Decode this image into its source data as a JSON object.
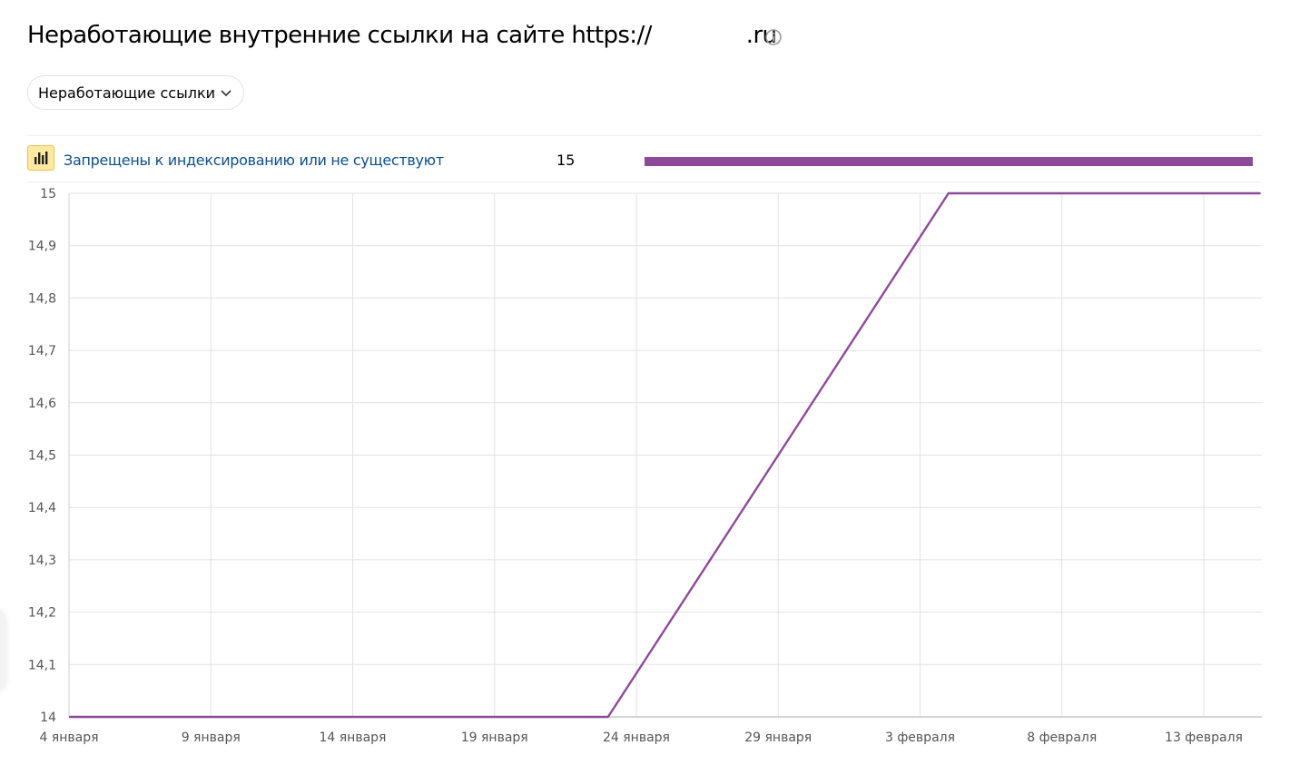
{
  "header": {
    "title": "Неработающие внутренние ссылки на сайте https://",
    "title_suffix": ".ru",
    "info_icon": "info-circle-icon"
  },
  "filter": {
    "selected": "Неработающие ссылки",
    "chevron_icon": "chevron-down-icon"
  },
  "legend": {
    "icon": "bar-chart-icon",
    "label": "Запрещены к индексированию или не существуют",
    "value": "15",
    "color": "#8e4a9a"
  },
  "chart_data": {
    "type": "line",
    "x_tick_labels": [
      "4 января",
      "9 января",
      "14 января",
      "19 января",
      "24 января",
      "29 января",
      "3 февраля",
      "8 февраля",
      "13 февраля"
    ],
    "y_tick_labels": [
      "15",
      "14,9",
      "14,8",
      "14,7",
      "14,6",
      "14,5",
      "14,4",
      "14,3",
      "14,2",
      "14,1",
      "14"
    ],
    "ylim": [
      14,
      15
    ],
    "xlim": [
      0,
      42
    ],
    "grid": true,
    "series": [
      {
        "color": "#8e4a9a",
        "points": [
          {
            "day": 0,
            "value": 14
          },
          {
            "day": 19,
            "value": 14
          },
          {
            "day": 31,
            "value": 15
          },
          {
            "day": 42,
            "value": 15
          }
        ]
      }
    ]
  }
}
